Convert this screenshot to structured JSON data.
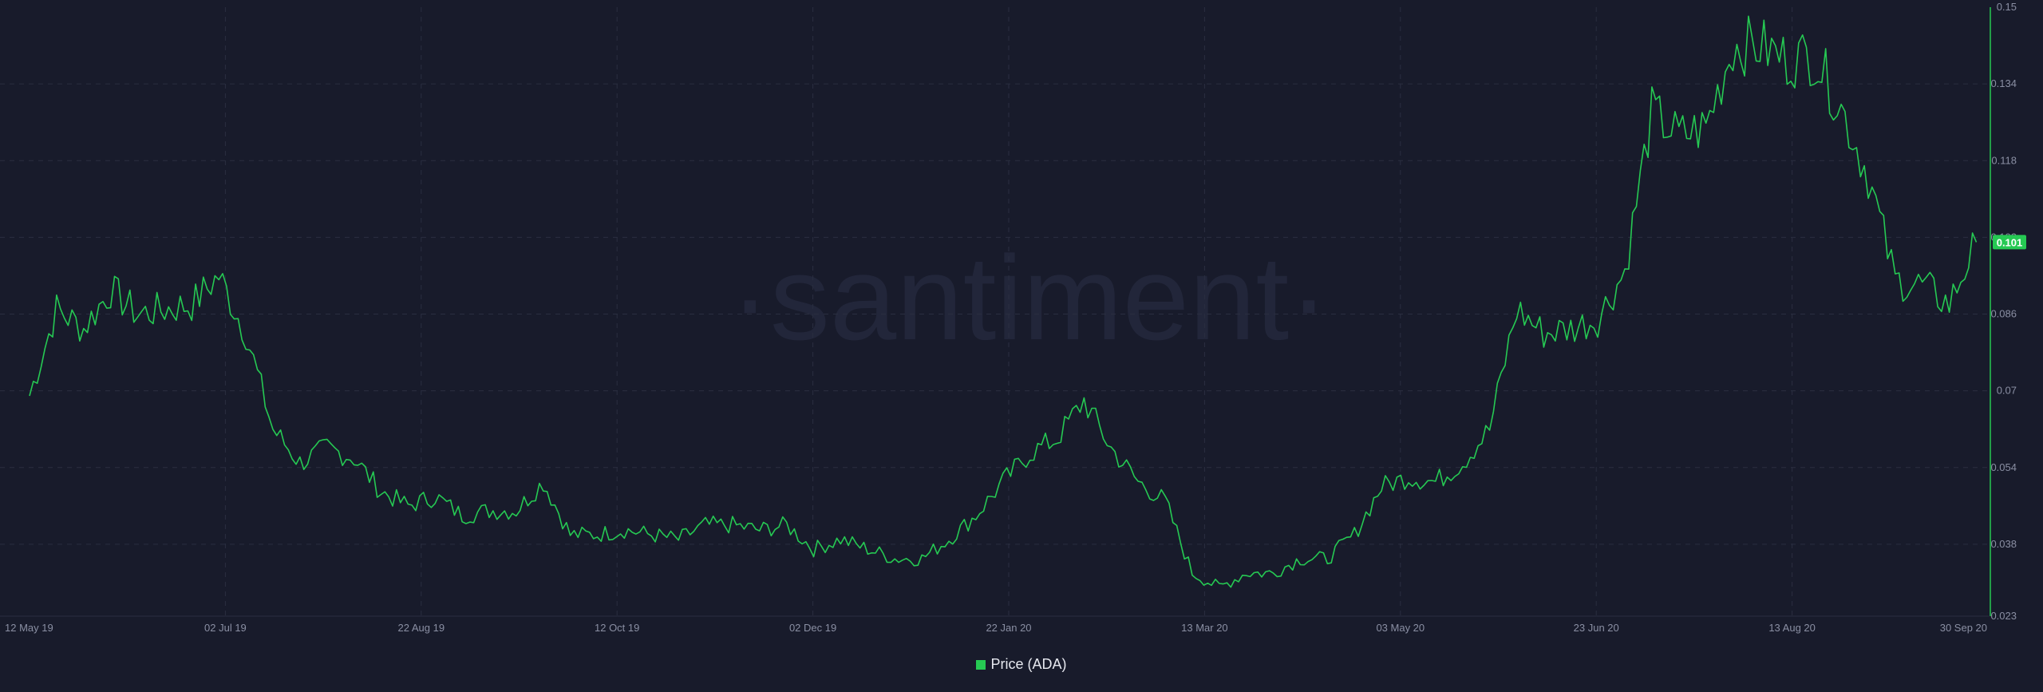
{
  "chart_data": {
    "type": "line",
    "watermark": "·santiment·",
    "x": [
      "2019-05-12",
      "2019-05-19",
      "2019-05-26",
      "2019-06-02",
      "2019-06-09",
      "2019-06-16",
      "2019-06-23",
      "2019-06-30",
      "2019-07-07",
      "2019-07-14",
      "2019-07-21",
      "2019-07-28",
      "2019-08-04",
      "2019-08-11",
      "2019-08-18",
      "2019-08-25",
      "2019-09-01",
      "2019-09-08",
      "2019-09-15",
      "2019-09-22",
      "2019-09-29",
      "2019-10-06",
      "2019-10-13",
      "2019-10-20",
      "2019-10-27",
      "2019-11-03",
      "2019-11-10",
      "2019-11-17",
      "2019-11-24",
      "2019-12-01",
      "2019-12-08",
      "2019-12-15",
      "2019-12-22",
      "2019-12-29",
      "2020-01-05",
      "2020-01-12",
      "2020-01-19",
      "2020-01-26",
      "2020-02-02",
      "2020-02-09",
      "2020-02-16",
      "2020-02-23",
      "2020-03-01",
      "2020-03-08",
      "2020-03-15",
      "2020-03-22",
      "2020-03-29",
      "2020-04-05",
      "2020-04-12",
      "2020-04-19",
      "2020-04-26",
      "2020-05-03",
      "2020-05-10",
      "2020-05-17",
      "2020-05-24",
      "2020-05-31",
      "2020-06-07",
      "2020-06-14",
      "2020-06-21",
      "2020-06-28",
      "2020-07-05",
      "2020-07-12",
      "2020-07-19",
      "2020-07-26",
      "2020-08-02",
      "2020-08-09",
      "2020-08-16",
      "2020-08-23",
      "2020-08-30",
      "2020-09-06",
      "2020-09-13",
      "2020-09-20",
      "2020-09-27"
    ],
    "series": [
      {
        "name": "Price (ADA)",
        "color": "#26c953",
        "values": [
          0.069,
          0.087,
          0.083,
          0.091,
          0.086,
          0.087,
          0.088,
          0.094,
          0.082,
          0.062,
          0.055,
          0.058,
          0.056,
          0.049,
          0.046,
          0.048,
          0.044,
          0.045,
          0.045,
          0.051,
          0.04,
          0.04,
          0.041,
          0.04,
          0.039,
          0.042,
          0.042,
          0.041,
          0.042,
          0.037,
          0.039,
          0.037,
          0.035,
          0.035,
          0.039,
          0.044,
          0.051,
          0.057,
          0.06,
          0.068,
          0.058,
          0.051,
          0.047,
          0.032,
          0.029,
          0.032,
          0.032,
          0.035,
          0.035,
          0.04,
          0.05,
          0.052,
          0.051,
          0.055,
          0.062,
          0.087,
          0.082,
          0.083,
          0.085,
          0.095,
          0.128,
          0.123,
          0.125,
          0.142,
          0.142,
          0.139,
          0.14,
          0.129,
          0.115,
          0.093,
          0.092,
          0.088,
          0.101
        ]
      }
    ],
    "x_ticks": [
      "12 May 19",
      "02 Jul 19",
      "22 Aug 19",
      "12 Oct 19",
      "02 Dec 19",
      "22 Jan 20",
      "13 Mar 20",
      "03 May 20",
      "23 Jun 20",
      "13 Aug 20",
      "30 Sep 20"
    ],
    "y_ticks": [
      "0.15",
      "0.134",
      "0.118",
      "0.102",
      "0.086",
      "0.07",
      "0.054",
      "0.038",
      "0.023"
    ],
    "ylim": [
      0.023,
      0.15
    ],
    "y_axis_position": "right",
    "grid": true,
    "legend": {
      "position": "bottom-center",
      "entries": [
        "Price (ADA)"
      ]
    },
    "last_value_label": "0.101"
  }
}
